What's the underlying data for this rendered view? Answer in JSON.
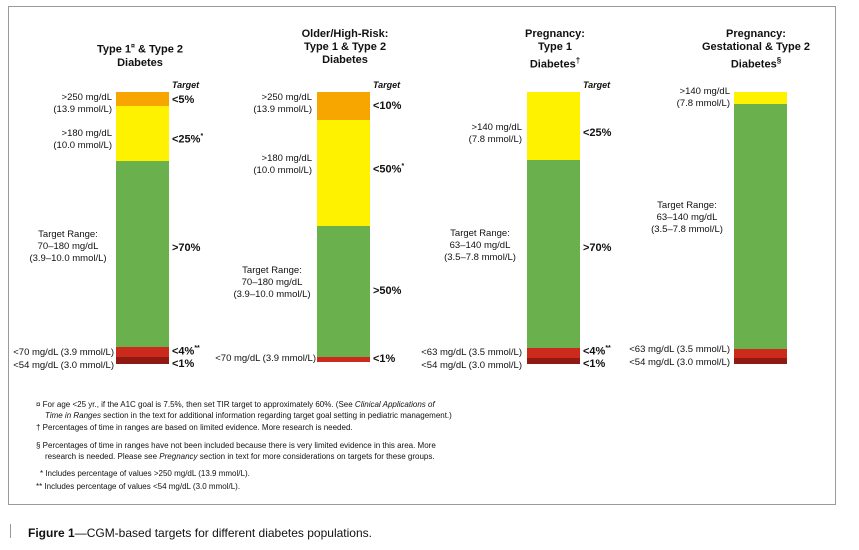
{
  "colors": {
    "orange": "#f7a600",
    "yellow": "#fff200",
    "green": "#6ab04c",
    "red": "#cc2a1c",
    "darkred": "#8e1a12"
  },
  "panels": [
    {
      "title": [
        "Type 1",
        "¤",
        " & Type 2",
        "Diabetes"
      ],
      "target_head": "Target",
      "labels": {
        "hi_250_a": ">250 mg/dL",
        "hi_250_b": "(13.9 mmol/L)",
        "hi_180_a": ">180 mg/dL",
        "hi_180_b": "(10.0 mmol/L)",
        "tr_a": "Target Range:",
        "tr_b": "70–180 mg/dL",
        "tr_c": "(3.9–10.0 mmol/L)",
        "lo_70": "<70 mg/dL (3.9 mmol/L)",
        "lo_54": "<54 mg/dL (3.0 mmol/L)"
      },
      "percents": {
        "p250": "<5%",
        "p180": "<25%",
        "p180_sup": "*",
        "ptr": ">70%",
        "p70": "<4%",
        "p70_sup": "**",
        "p54": "<1%"
      }
    },
    {
      "title": [
        "Older/High-Risk:",
        "Type 1 & Type 2",
        "Diabetes"
      ],
      "target_head": "Target",
      "labels": {
        "hi_250_a": ">250 mg/dL",
        "hi_250_b": "(13.9 mmol/L)",
        "hi_180_a": ">180 mg/dL",
        "hi_180_b": "(10.0 mmol/L)",
        "tr_a": "Target Range:",
        "tr_b": "70–180 mg/dL",
        "tr_c": "(3.9–10.0 mmol/L)",
        "lo_70": "<70 mg/dL (3.9 mmol/L)"
      },
      "percents": {
        "p250": "<10%",
        "p180": "<50%",
        "p180_sup": "*",
        "ptr": ">50%",
        "p70": "<1%"
      }
    },
    {
      "title": [
        "Pregnancy:",
        "Type 1",
        "Diabetes",
        "†"
      ],
      "target_head": "Target",
      "labels": {
        "hi_140_a": ">140 mg/dL",
        "hi_140_b": "(7.8 mmol/L)",
        "tr_a": "Target Range:",
        "tr_b": "63–140 mg/dL",
        "tr_c": "(3.5–7.8 mmol/L)",
        "lo_63": "<63 mg/dL (3.5 mmol/L)",
        "lo_54": "<54 mg/dL (3.0 mmol/L)"
      },
      "percents": {
        "p140": "<25%",
        "ptr": ">70%",
        "p63": "<4%",
        "p63_sup": "**",
        "p54": "<1%"
      }
    },
    {
      "title": [
        "Pregnancy:",
        "Gestational & Type 2",
        "Diabetes",
        "§"
      ],
      "labels": {
        "hi_140_a": ">140 mg/dL",
        "hi_140_b": "(7.8 mmol/L)",
        "tr_a": "Target Range:",
        "tr_b": "63–140 mg/dL",
        "tr_c": "(3.5–7.8 mmol/L)",
        "lo_63": "<63 mg/dL (3.5 mmol/L)",
        "lo_54": "<54 mg/dL (3.0 mmol/L)"
      }
    }
  ],
  "footnotes": {
    "f1_a": "¤  For age <25 yr., if the A1C goal is 7.5%, then set TIR target to approximately 60%.  (See ",
    "f1_b": "Clinical Applications of",
    "f1_c": "Time in Ranges",
    "f1_d": " section in the text for additional information regarding target goal setting in pediatric management.)",
    "f2": "†  Percentages of time in ranges are based on limited evidence. More research is needed.",
    "f3_a": "§  Percentages of time in ranges have not been included because there is very limited evidence in this area.  More",
    "f3_b": "research is needed. Please see ",
    "f3_c": "Pregnancy",
    "f3_d": " section in text for more considerations on targets for these groups.",
    "f4": "*  Includes percentage of values >250 mg/dL (13.9 mmol/L).",
    "f5": "** Includes percentage of values <54 mg/dL (3.0 mmol/L)."
  },
  "caption": {
    "bold": "Figure 1",
    "rest": "—CGM-based targets for different diabetes populations."
  }
}
